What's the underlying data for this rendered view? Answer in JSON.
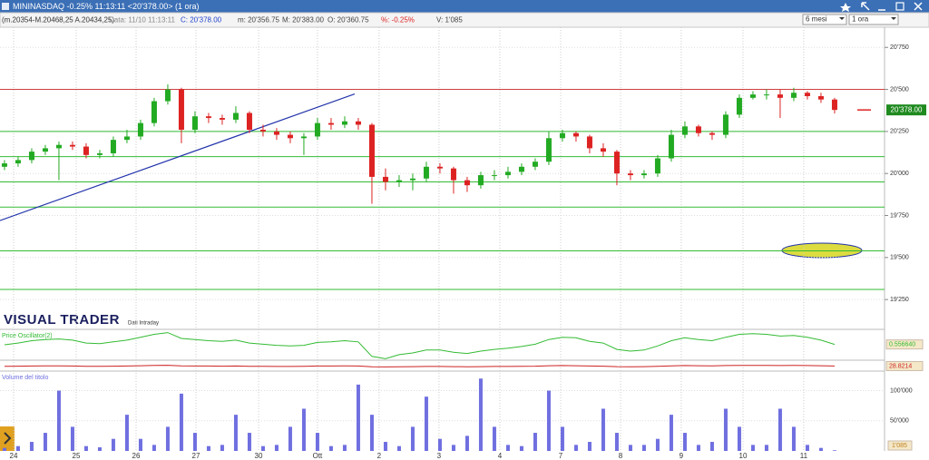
{
  "window": {
    "title": "MININASDAQ -0.25% 11:13:11 <20'378.00> (1 ora)",
    "period": "6 mesi",
    "timeframe": "1 ora"
  },
  "info_bar": [
    "(m.20354-M.20468,25 A.20434,25)",
    "Data: 11/10 11:13:11",
    "C: 20'378.00",
    "m: 20'356.75",
    "M: 20'383.00",
    "O: 20'360.75",
    "%: -0.25%",
    "V: 1'085"
  ],
  "brand": {
    "logo": "VISUAL TRADER",
    "subtitle": "Dati Intraday"
  },
  "chart_data": [
    {
      "type": "candlestick",
      "open": [
        20040,
        20060,
        20080,
        20130,
        20150,
        20170,
        20160,
        20110,
        20120,
        20200,
        20220,
        20300,
        20430,
        20500,
        20260,
        20340,
        20330,
        20320,
        20360,
        20260,
        20250,
        20230,
        20210,
        20220,
        20300,
        20290,
        20310,
        20290,
        19980,
        19950,
        19960,
        19970,
        20040,
        20030,
        19960,
        19930,
        19990,
        19990,
        20010,
        20040,
        20070,
        20210,
        20240,
        20220,
        20150,
        20130,
        20000,
        19990,
        20000,
        20090,
        20230,
        20280,
        20240,
        20230,
        20350,
        20450,
        20470,
        20470,
        20450,
        20480,
        20460,
        20440
      ],
      "high": [
        20080,
        20100,
        20150,
        20170,
        20190,
        20190,
        20180,
        20140,
        20220,
        20260,
        20320,
        20450,
        20530,
        20510,
        20370,
        20360,
        20350,
        20400,
        20370,
        20290,
        20270,
        20250,
        20240,
        20330,
        20330,
        20340,
        20330,
        20300,
        20030,
        19990,
        20000,
        20070,
        20060,
        20040,
        19980,
        20010,
        20020,
        20040,
        20060,
        20090,
        20250,
        20260,
        20250,
        20230,
        20180,
        20140,
        20020,
        20020,
        20110,
        20260,
        20310,
        20290,
        20250,
        20370,
        20470,
        20490,
        20500,
        20500,
        20510,
        20490,
        20480,
        20450
      ],
      "low": [
        20020,
        20040,
        20060,
        20110,
        19960,
        20140,
        20090,
        20090,
        20100,
        20180,
        20200,
        20280,
        20410,
        20180,
        20240,
        20300,
        20290,
        20300,
        20240,
        20220,
        20200,
        20180,
        20110,
        20200,
        20260,
        20270,
        20260,
        19820,
        19900,
        19920,
        19900,
        19950,
        20000,
        19880,
        19890,
        19910,
        19960,
        19970,
        19990,
        20020,
        20050,
        20190,
        20190,
        20120,
        20100,
        19930,
        19960,
        19970,
        19980,
        20070,
        20210,
        20220,
        20200,
        20210,
        20330,
        20440,
        20440,
        20330,
        20430,
        20440,
        20420,
        20356.75
      ],
      "close": [
        20060,
        20080,
        20130,
        20150,
        20170,
        20160,
        20110,
        20120,
        20200,
        20220,
        20300,
        20430,
        20500,
        20260,
        20340,
        20330,
        20320,
        20360,
        20260,
        20250,
        20230,
        20210,
        20220,
        20300,
        20290,
        20310,
        20290,
        19980,
        19950,
        19960,
        19970,
        20040,
        20030,
        19960,
        19930,
        19990,
        19990,
        20010,
        20040,
        20070,
        20210,
        20240,
        20220,
        20150,
        20130,
        20000,
        19990,
        20000,
        20090,
        20230,
        20280,
        20240,
        20230,
        20350,
        20450,
        20470,
        20470,
        20450,
        20480,
        20460,
        20440,
        20378
      ],
      "up_color": "#22aa22",
      "down_color": "#dd2222",
      "xlim": [
        -0.33,
        64.67
      ],
      "xticks": [
        {
          "value": 0.67,
          "label": "24"
        },
        {
          "value": 5.27,
          "label": "25"
        },
        {
          "value": 9.67,
          "label": "26"
        },
        {
          "value": 14.07,
          "label": "27"
        },
        {
          "value": 18.67,
          "label": "30"
        },
        {
          "value": 23,
          "label": "Ott"
        },
        {
          "value": 27.53,
          "label": "2"
        },
        {
          "value": 31.93,
          "label": "3"
        },
        {
          "value": 36.4,
          "label": "4"
        },
        {
          "value": 40.87,
          "label": "7"
        },
        {
          "value": 45.27,
          "label": "8"
        },
        {
          "value": 49.73,
          "label": "9"
        },
        {
          "value": 54.27,
          "label": "10"
        },
        {
          "value": 58.73,
          "label": "11"
        }
      ],
      "ylim": [
        19170,
        20870
      ],
      "yticks": [
        {
          "value": 19250,
          "label": "19'250"
        },
        {
          "value": 19500,
          "label": "19'500"
        },
        {
          "value": 19750,
          "label": "19'750"
        },
        {
          "value": 20000,
          "label": "20'000"
        },
        {
          "value": 20250,
          "label": "20'250"
        },
        {
          "value": 20500,
          "label": "20'500"
        },
        {
          "value": 20750,
          "label": "20'750"
        }
      ],
      "hlines": [
        {
          "value": 20500,
          "color": "#d04040"
        },
        {
          "value": 20250,
          "color": "#33bb33"
        },
        {
          "value": 20100,
          "color": "#33bb33"
        },
        {
          "value": 19950,
          "color": "#33bb33"
        },
        {
          "value": 19800,
          "color": "#33bb33"
        },
        {
          "value": 19540,
          "color": "#33bb33"
        },
        {
          "value": 19310,
          "color": "#33bb33"
        }
      ],
      "trendline": {
        "x": [
          -0.33,
          25.73
        ],
        "y": [
          19720,
          20473
        ],
        "color": "#2233aa"
      },
      "last_price": {
        "value": 20378,
        "label": "20'378.00"
      }
    },
    {
      "type": "line",
      "title": "Price Oscillator(2)",
      "color": "#33bb33",
      "values": [
        0.5,
        0.8,
        1.2,
        1.4,
        1.5,
        1.3,
        0.8,
        0.7,
        1.0,
        1.3,
        1.8,
        2.3,
        2.6,
        1.6,
        1.4,
        1.2,
        1.1,
        1.3,
        0.8,
        0.6,
        0.4,
        0.3,
        0.4,
        0.9,
        1.0,
        1.2,
        1.0,
        -1.5,
        -1.9,
        -1.2,
        -0.9,
        -0.4,
        -0.4,
        -0.8,
        -1.0,
        -0.6,
        -0.3,
        -0.1,
        0.2,
        0.6,
        1.4,
        1.8,
        1.7,
        1.1,
        0.8,
        -0.3,
        -0.6,
        -0.4,
        0.3,
        1.2,
        1.7,
        1.4,
        1.2,
        1.8,
        2.3,
        2.4,
        2.3,
        2.0,
        2.1,
        1.8,
        1.3,
        0.55664
      ],
      "ylim": [
        -2,
        3
      ],
      "last_value": {
        "value": 0.55664,
        "label": "0.556640"
      }
    },
    {
      "type": "line",
      "color": "#cc2222",
      "values": [
        27,
        28,
        29,
        30,
        30,
        29,
        27,
        27,
        28,
        29,
        31,
        33,
        34,
        30,
        29,
        29,
        28,
        29,
        27,
        27,
        26,
        26,
        27,
        29,
        29,
        30,
        29,
        24,
        23,
        24,
        25,
        26,
        26,
        25,
        24,
        25,
        26,
        26,
        27,
        28,
        31,
        32,
        31,
        29,
        28,
        25,
        24,
        25,
        27,
        30,
        32,
        31,
        30,
        32,
        33,
        33,
        33,
        32,
        33,
        32,
        31,
        28.8214
      ],
      "ylim": [
        0,
        57
      ],
      "last_value": {
        "value": 28.8214,
        "label": "28.8214"
      }
    },
    {
      "type": "bar",
      "title": "Volume del titolo",
      "color": "#6f6fe0",
      "values": [
        5000,
        8000,
        15000,
        30000,
        100000,
        40000,
        8000,
        6000,
        20000,
        60000,
        20000,
        10000,
        40000,
        95000,
        30000,
        8000,
        10000,
        60000,
        30000,
        8000,
        10000,
        40000,
        70000,
        30000,
        8000,
        10000,
        110000,
        60000,
        15000,
        8000,
        40000,
        90000,
        20000,
        10000,
        25000,
        120000,
        40000,
        10000,
        8000,
        30000,
        100000,
        40000,
        10000,
        15000,
        70000,
        30000,
        10000,
        10000,
        20000,
        60000,
        30000,
        10000,
        15000,
        70000,
        40000,
        10000,
        10000,
        70000,
        40000,
        10000,
        5000,
        1085
      ],
      "ylim": [
        0,
        129400
      ],
      "yticks": [
        {
          "value": 50000,
          "label": "50'000"
        },
        {
          "value": 100000,
          "label": "100'000"
        }
      ],
      "last_value": {
        "value": 1085,
        "label": "1'085"
      }
    }
  ]
}
